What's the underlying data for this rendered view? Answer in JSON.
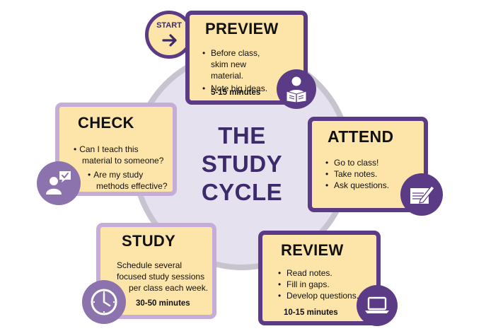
{
  "center": {
    "line1": "THE",
    "line2": "STUDY",
    "line3": "CYCLE"
  },
  "start": {
    "label": "START"
  },
  "preview": {
    "title": "PREVIEW",
    "bullets": [
      "Before class, skim new material.",
      "Note big ideas."
    ],
    "time": "5-15 minutes",
    "icon": "reader-icon"
  },
  "attend": {
    "title": "ATTEND",
    "bullets": [
      "Go to class!",
      "Take notes.",
      "Ask questions."
    ],
    "icon": "notepad-pencil-icon"
  },
  "review": {
    "title": "REVIEW",
    "bullets": [
      "Read notes.",
      "Fill in gaps.",
      "Develop questions."
    ],
    "time": "10-15 minutes",
    "icon": "laptop-icon"
  },
  "study": {
    "title": "STUDY",
    "text1": "Schedule several",
    "text2": "focused study sessions",
    "text3": "per class each week.",
    "time": "30-50 minutes",
    "icon": "clock-icon"
  },
  "check": {
    "title": "CHECK",
    "bullet1a": "Can I teach this",
    "bullet1b": "material to someone?",
    "bullet2a": "Are my study",
    "bullet2b": "methods effective?",
    "icon": "person-check-icon"
  },
  "colors": {
    "purple": "#5b3a86",
    "light_purple": "#c4aed8",
    "cream": "#fde5a9",
    "ring": "#c7c3cf"
  }
}
